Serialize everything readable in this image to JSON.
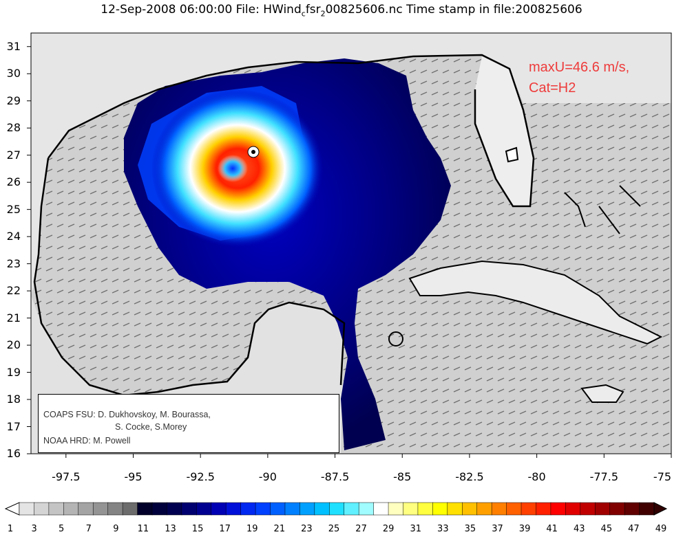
{
  "title": {
    "text_main": "12-Sep-2008 06:00:00 File: HWind",
    "sub1": "c",
    "text_mid": "fsr",
    "sub2": "2",
    "text_end": "00825606.nc Time stamp in file:200825606"
  },
  "annotation": {
    "line1": "maxU=46.6 m/s,",
    "line2": "Cat=H2"
  },
  "credits": {
    "line1": "COAPS FSU: D. Dukhovskoy, M. Bourassa,",
    "line2": "S. Cocke, S.Morey",
    "line3": "NOAA HRD:  M. Powell"
  },
  "map_data": {
    "type": "wind-speed field with vector arrows",
    "region": "Gulf of Mexico / Caribbean",
    "lon_range": [
      -98.8,
      -75
    ],
    "lat_range": [
      16,
      31.5
    ],
    "storm_center": {
      "lon": -91.0,
      "lat": 26.5
    },
    "max_wind_location": {
      "lon": -90.2,
      "lat": 27.1
    },
    "xticks": [
      "-97.5",
      "-95",
      "-92.5",
      "-90",
      "-87.5",
      "-85",
      "-82.5",
      "-80",
      "-77.5",
      "-75"
    ],
    "xtick_values": [
      -97.5,
      -95,
      -92.5,
      -90,
      -87.5,
      -85,
      -82.5,
      -80,
      -77.5,
      -75
    ],
    "yticks": [
      "16",
      "17",
      "18",
      "19",
      "20",
      "21",
      "22",
      "23",
      "24",
      "25",
      "26",
      "27",
      "28",
      "29",
      "30",
      "31"
    ],
    "ytick_values": [
      16,
      17,
      18,
      19,
      20,
      21,
      22,
      23,
      24,
      25,
      26,
      27,
      28,
      29,
      30,
      31
    ]
  },
  "colorbar": {
    "labels": [
      "1",
      "3",
      "5",
      "7",
      "9",
      "11",
      "13",
      "15",
      "17",
      "19",
      "21",
      "23",
      "25",
      "27",
      "29",
      "31",
      "33",
      "35",
      "37",
      "39",
      "41",
      "43",
      "45",
      "47",
      "49"
    ],
    "colors": [
      "#e4e4e4",
      "#d4d4d4",
      "#c4c4c4",
      "#b4b4b4",
      "#a4a4a4",
      "#949494",
      "#848484",
      "#6c6c6c",
      "#00002a",
      "#00003c",
      "#000050",
      "#000070",
      "#000090",
      "#0000b4",
      "#0010d8",
      "#0028f0",
      "#0040ff",
      "#0060ff",
      "#0080ff",
      "#00a0ff",
      "#00c0ff",
      "#20e0ff",
      "#60f0ff",
      "#a0fcff",
      "#ffffff",
      "#ffffc0",
      "#ffff80",
      "#ffff40",
      "#ffff00",
      "#ffe000",
      "#ffc000",
      "#ffa000",
      "#ff8000",
      "#ff6000",
      "#ff4000",
      "#ff2000",
      "#ff0000",
      "#e00000",
      "#c00000",
      "#a00000",
      "#800000",
      "#600000",
      "#400000"
    ]
  }
}
